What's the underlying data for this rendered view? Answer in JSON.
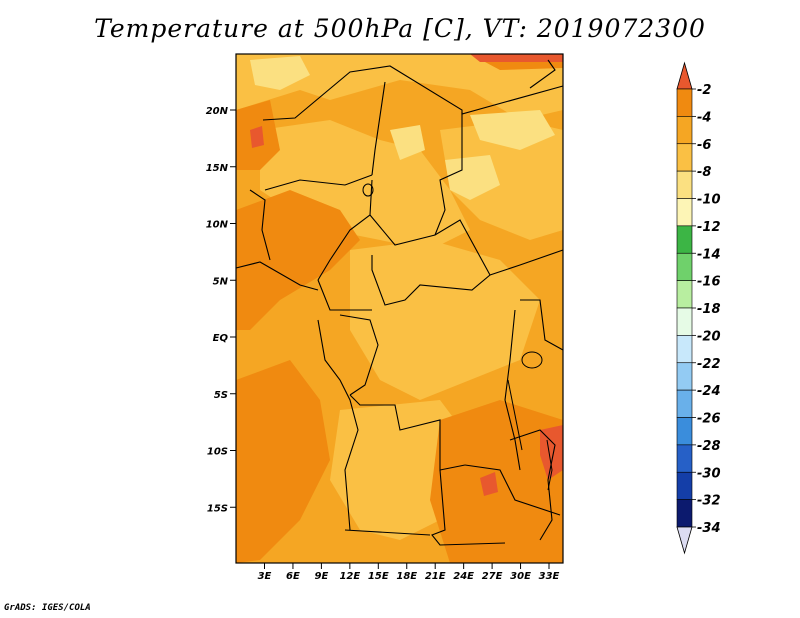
{
  "title": "Temperature at 500hPa [C], VT: 2019072300",
  "credit": "GrADS: IGES/COLA",
  "map": {
    "variable": "Temperature at 500hPa",
    "units": "C",
    "valid_time": "2019072300",
    "lon_range": [
      0,
      35
    ],
    "lat_range": [
      -20,
      24.5
    ],
    "lat_ticks": [
      "20N",
      "15N",
      "10N",
      "5N",
      "EQ",
      "5S",
      "10S",
      "15S"
    ],
    "lon_ticks": [
      "3E",
      "6E",
      "9E",
      "12E",
      "15E",
      "18E",
      "21E",
      "24E",
      "27E",
      "30E",
      "33E"
    ]
  },
  "colorbar": {
    "labels": [
      "-2",
      "-4",
      "-6",
      "-8",
      "-10",
      "-12",
      "-14",
      "-16",
      "-18",
      "-20",
      "-22",
      "-24",
      "-26",
      "-28",
      "-30",
      "-32",
      "-34"
    ],
    "colors": [
      "#e8582e",
      "#f08a10",
      "#f5a623",
      "#fac044",
      "#fbe081",
      "#fdf5b6",
      "#3cb545",
      "#6fd16b",
      "#b8eea0",
      "#e6fbe6",
      "#c8e8fb",
      "#93cbf3",
      "#69b0ea",
      "#3a8ddc",
      "#2660c7",
      "#143ea8",
      "#0c1a6e",
      "#dcdcf2"
    ],
    "top_arrow_color": "#e8582e",
    "bottom_arrow_color": "#dcdcf2"
  }
}
